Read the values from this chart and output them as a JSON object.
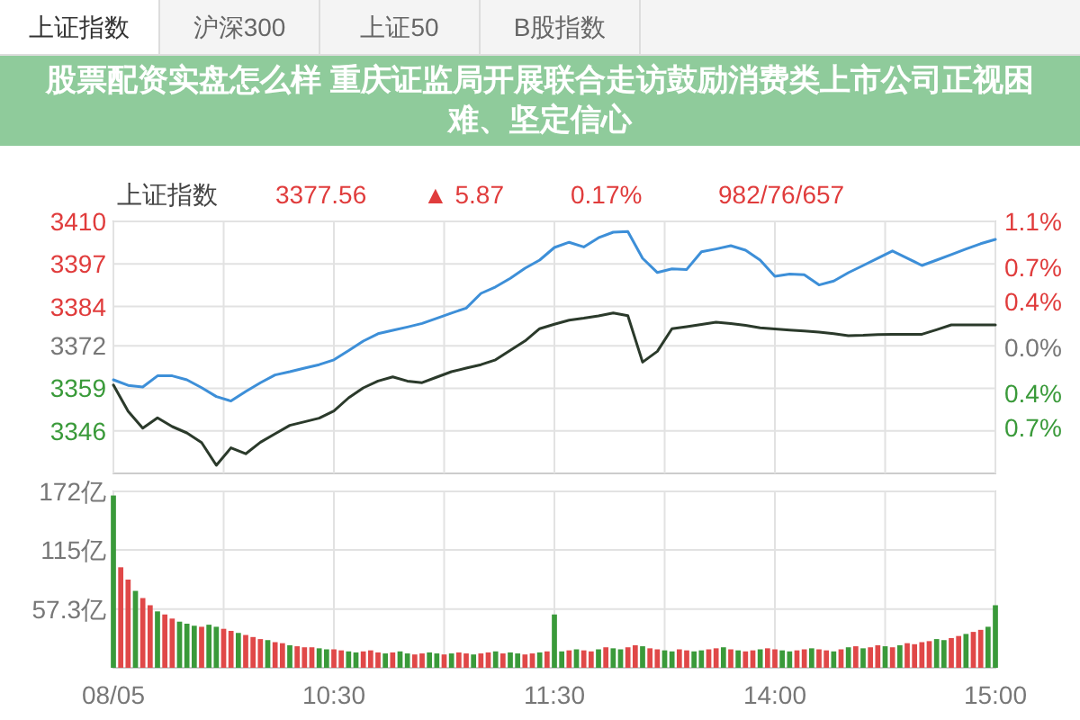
{
  "chart_data": [
    {
      "type": "other",
      "title": "股票配资实盘怎么样 重庆证监局开展联合走访鼓励消费类上市公司正视困难、坚定信心",
      "annotations": [
        "上证指数",
        "沪深300",
        "上证50",
        "B股指数"
      ]
    },
    {
      "type": "line",
      "annotations": [
        "上证指数",
        "3377.56",
        "▲ 5.87",
        "0.17%",
        "982/76/657"
      ],
      "series": [
        {
          "color": "#3d8fd8",
          "values": [
            3361.6,
            3359.9,
            3359.4,
            3362.8,
            3362.8,
            3361.6,
            3359.2,
            3356.5,
            3355.1,
            3358,
            3360.7,
            3363.1,
            3364.1,
            3365.2,
            3366.2,
            3367.7,
            3370.5,
            3373.4,
            3375.7,
            3376.7,
            3377.7,
            3378.8,
            3380.4,
            3382,
            3383.5,
            3388,
            3390,
            3392.6,
            3395.7,
            3398.2,
            3402,
            3403.6,
            3402.2,
            3405,
            3406.7,
            3406.9,
            3398.7,
            3394.4,
            3395.5,
            3395.3,
            3400.7,
            3401.6,
            3402.6,
            3401.2,
            3398.2,
            3393.2,
            3393.9,
            3393.7,
            3390.6,
            3391.8,
            3394.3,
            3396.5,
            3398.8,
            3401,
            3398.8,
            3396.5,
            3398.2,
            3399.9,
            3401.6,
            3403.2,
            3404.5
          ]
        },
        {
          "color": "#2b3a2b",
          "values": [
            3360,
            3352,
            3346.8,
            3350,
            3347.3,
            3345.4,
            3342.4,
            3335.5,
            3340.8,
            3339,
            3342.5,
            3345.1,
            3347.7,
            3348.8,
            3349.9,
            3352.1,
            3356.1,
            3359.1,
            3361.2,
            3362.5,
            3361.2,
            3360.7,
            3362.4,
            3364.1,
            3365.2,
            3366.2,
            3367.7,
            3370.6,
            3373.5,
            3377.2,
            3378.6,
            3379.8,
            3380.4,
            3381.1,
            3382,
            3381.2,
            3367,
            3370.3,
            3377.2,
            3377.8,
            3378.5,
            3379.2,
            3378.8,
            3378.2,
            3377.5,
            3377.1,
            3376.8,
            3376.5,
            3376.2,
            3375.7,
            3375.1,
            3375.2,
            3375.4,
            3375.5,
            3375.5,
            3375.5,
            3376.9,
            3378.4,
            3378.4,
            3378.4,
            3378.4
          ]
        }
      ],
      "categories": [
        null,
        null,
        null,
        null,
        null,
        null,
        null,
        null,
        null,
        null,
        null,
        null,
        null,
        null,
        null,
        null,
        null,
        null,
        null,
        null,
        null,
        null,
        null,
        null,
        null,
        null,
        null,
        null,
        null,
        null,
        null,
        null,
        null,
        null,
        null,
        null,
        null,
        null,
        null,
        null,
        null,
        null,
        null,
        null,
        null,
        null,
        null,
        null,
        null,
        null,
        null,
        null,
        null,
        null,
        null,
        null,
        null,
        null,
        null,
        null,
        null
      ],
      "ylim": [
        3333,
        3410
      ],
      "yticks": [
        3346,
        3359,
        3372,
        3384,
        3397,
        3410
      ],
      "y2lim": [
        -1.1,
        1.1
      ],
      "y2ticks": [
        {
          "value": -0.7,
          "label": "0.7%"
        },
        {
          "value": -0.4,
          "label": "0.4%"
        },
        {
          "value": 0,
          "label": "0.0%"
        },
        {
          "value": 0.4,
          "label": "0.4%"
        },
        {
          "value": 0.7,
          "label": "0.7%"
        },
        {
          "value": 1.1,
          "label": "1.1%"
        }
      ],
      "tick_labels": "y",
      "grid": true
    },
    {
      "type": "bar",
      "categories": [
        "08/05",
        null,
        null,
        null,
        null,
        null,
        null,
        null,
        null,
        null,
        null,
        null,
        null,
        null,
        null,
        null,
        null,
        null,
        null,
        null,
        null,
        null,
        null,
        null,
        null,
        null,
        null,
        null,
        null,
        null,
        "10:30",
        null,
        null,
        null,
        null,
        null,
        null,
        null,
        null,
        null,
        null,
        null,
        null,
        null,
        null,
        null,
        null,
        null,
        null,
        null,
        null,
        null,
        null,
        null,
        null,
        null,
        null,
        null,
        null,
        null,
        "11:30",
        null,
        null,
        null,
        null,
        null,
        null,
        null,
        null,
        null,
        null,
        null,
        null,
        null,
        null,
        null,
        null,
        null,
        null,
        null,
        null,
        null,
        null,
        null,
        null,
        null,
        null,
        null,
        null,
        null,
        "14:00",
        null,
        null,
        null,
        null,
        null,
        null,
        null,
        null,
        null,
        null,
        null,
        null,
        null,
        null,
        null,
        null,
        null,
        null,
        null,
        null,
        null,
        null,
        null,
        null,
        null,
        null,
        null,
        null,
        null,
        "15:00"
      ],
      "values": [
        168,
        98,
        86,
        75,
        68,
        61,
        55,
        52,
        48,
        45,
        43,
        41,
        40,
        42,
        40,
        38,
        36,
        34,
        32,
        30,
        28,
        27,
        25,
        24,
        22,
        21,
        20,
        20,
        19,
        18,
        18,
        17,
        16,
        15,
        16,
        17,
        15,
        14,
        15,
        16,
        14,
        13,
        14,
        15,
        14,
        13,
        14,
        15,
        14,
        13,
        14,
        15,
        16,
        14,
        15,
        14,
        13,
        14,
        15,
        16,
        52,
        16,
        17,
        18,
        17,
        16,
        18,
        20,
        19,
        18,
        20,
        22,
        21,
        19,
        18,
        17,
        16,
        18,
        17,
        16,
        17,
        18,
        19,
        20,
        18,
        17,
        16,
        17,
        18,
        19,
        18,
        17,
        16,
        17,
        18,
        19,
        18,
        17,
        16,
        18,
        20,
        21,
        19,
        20,
        22,
        21,
        20,
        22,
        24,
        23,
        25,
        26,
        28,
        27,
        29,
        31,
        33,
        35,
        37,
        40,
        61
      ],
      "colors": [
        "#3a9a3a",
        "#e04848",
        "#e04848",
        "#3a9a3a",
        "#e04848",
        "#e04848",
        "#3a9a3a",
        "#e04848",
        "#e04848",
        "#3a9a3a",
        "#3a9a3a",
        "#3a9a3a",
        "#e04848",
        "#3a9a3a",
        "#3a9a3a",
        "#e04848",
        "#e04848",
        "#3a9a3a",
        "#e04848",
        "#e04848",
        "#e04848",
        "#3a9a3a",
        "#e04848",
        "#e04848",
        "#3a9a3a",
        "#e04848",
        "#e04848",
        "#e04848",
        "#3a9a3a",
        "#3a9a3a",
        "#e04848",
        "#e04848",
        "#3a9a3a",
        "#3a9a3a",
        "#e04848",
        "#e04848",
        "#e04848",
        "#3a9a3a",
        "#e04848",
        "#3a9a3a",
        "#3a9a3a",
        "#e04848",
        "#e04848",
        "#3a9a3a",
        "#3a9a3a",
        "#e04848",
        "#3a9a3a",
        "#e04848",
        "#e04848",
        "#3a9a3a",
        "#e04848",
        "#e04848",
        "#3a9a3a",
        "#e04848",
        "#3a9a3a",
        "#3a9a3a",
        "#e04848",
        "#e04848",
        "#3a9a3a",
        "#e04848",
        "#3a9a3a",
        "#3a9a3a",
        "#e04848",
        "#3a9a3a",
        "#e04848",
        "#e04848",
        "#3a9a3a",
        "#e04848",
        "#3a9a3a",
        "#3a9a3a",
        "#e04848",
        "#e04848",
        "#3a9a3a",
        "#e04848",
        "#e04848",
        "#3a9a3a",
        "#3a9a3a",
        "#e04848",
        "#e04848",
        "#3a9a3a",
        "#3a9a3a",
        "#e04848",
        "#e04848",
        "#3a9a3a",
        "#e04848",
        "#3a9a3a",
        "#e04848",
        "#e04848",
        "#3a9a3a",
        "#e04848",
        "#e04848",
        "#3a9a3a",
        "#3a9a3a",
        "#e04848",
        "#e04848",
        "#3a9a3a",
        "#e04848",
        "#e04848",
        "#3a9a3a",
        "#e04848",
        "#3a9a3a",
        "#e04848",
        "#3a9a3a",
        "#e04848",
        "#e04848",
        "#3a9a3a",
        "#e04848",
        "#3a9a3a",
        "#e04848",
        "#e04848",
        "#e04848",
        "#e04848",
        "#3a9a3a",
        "#3a9a3a",
        "#e04848",
        "#e04848",
        "#3a9a3a",
        "#e04848",
        "#e04848",
        "#3a9a3a",
        "#3a9a3a"
      ],
      "ylim": [
        0,
        172
      ],
      "yticks": [
        {
          "value": 57.3,
          "label": "57.3亿"
        },
        {
          "value": 115,
          "label": "115亿"
        },
        {
          "value": 172,
          "label": "172亿"
        }
      ],
      "grid": true
    }
  ]
}
